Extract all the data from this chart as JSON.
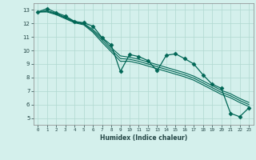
{
  "title": "",
  "xlabel": "Humidex (Indice chaleur)",
  "ylabel": "",
  "bg_color": "#d4f0ec",
  "grid_color": "#b0d8d0",
  "line_color": "#006655",
  "xlim": [
    -0.5,
    23.5
  ],
  "ylim": [
    4.5,
    13.5
  ],
  "xticks": [
    0,
    1,
    2,
    3,
    4,
    5,
    6,
    7,
    8,
    9,
    10,
    11,
    12,
    13,
    14,
    15,
    16,
    17,
    18,
    19,
    20,
    21,
    22,
    23
  ],
  "yticks": [
    5,
    6,
    7,
    8,
    9,
    10,
    11,
    12,
    13
  ],
  "series": [
    {
      "x": [
        0,
        1,
        2,
        3,
        4,
        5,
        6,
        7,
        8,
        9,
        10,
        11,
        12,
        13,
        14,
        15,
        16,
        17,
        18,
        19,
        20,
        21,
        22,
        23
      ],
      "y": [
        12.85,
        13.1,
        12.8,
        12.55,
        12.15,
        12.05,
        11.8,
        10.95,
        10.4,
        8.45,
        9.7,
        9.55,
        9.25,
        8.5,
        9.65,
        9.75,
        9.4,
        9.0,
        8.2,
        7.5,
        7.2,
        5.35,
        5.1,
        5.75
      ],
      "marker": "D",
      "markersize": 2.5,
      "lw": 0.9
    },
    {
      "x": [
        0,
        1,
        2,
        3,
        4,
        5,
        6,
        7,
        8,
        9,
        10,
        11,
        12,
        13,
        14,
        15,
        16,
        17,
        18,
        19,
        20,
        21,
        22,
        23
      ],
      "y": [
        12.85,
        12.95,
        12.75,
        12.45,
        12.15,
        12.0,
        11.55,
        10.9,
        10.2,
        9.6,
        9.5,
        9.35,
        9.15,
        8.95,
        8.75,
        8.55,
        8.35,
        8.1,
        7.75,
        7.4,
        7.05,
        6.8,
        6.45,
        6.15
      ],
      "marker": null,
      "markersize": 0,
      "lw": 0.8
    },
    {
      "x": [
        0,
        1,
        2,
        3,
        4,
        5,
        6,
        7,
        8,
        9,
        10,
        11,
        12,
        13,
        14,
        15,
        16,
        17,
        18,
        19,
        20,
        21,
        22,
        23
      ],
      "y": [
        12.85,
        12.9,
        12.7,
        12.4,
        12.1,
        11.95,
        11.45,
        10.75,
        10.05,
        9.4,
        9.35,
        9.2,
        9.0,
        8.8,
        8.6,
        8.4,
        8.2,
        7.95,
        7.6,
        7.25,
        6.9,
        6.65,
        6.3,
        6.0
      ],
      "marker": null,
      "markersize": 0,
      "lw": 0.8
    },
    {
      "x": [
        0,
        1,
        2,
        3,
        4,
        5,
        6,
        7,
        8,
        9,
        10,
        11,
        12,
        13,
        14,
        15,
        16,
        17,
        18,
        19,
        20,
        21,
        22,
        23
      ],
      "y": [
        12.85,
        12.85,
        12.65,
        12.35,
        12.05,
        11.9,
        11.35,
        10.6,
        9.9,
        9.2,
        9.2,
        9.05,
        8.85,
        8.65,
        8.45,
        8.25,
        8.05,
        7.8,
        7.45,
        7.1,
        6.75,
        6.5,
        6.15,
        5.85
      ],
      "marker": null,
      "markersize": 0,
      "lw": 0.8
    }
  ]
}
